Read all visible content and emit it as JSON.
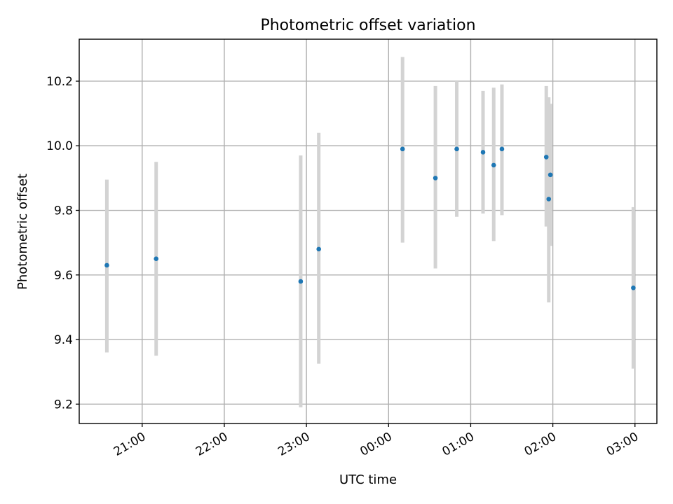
{
  "chart_data": {
    "type": "scatter",
    "title": "Photometric offset variation",
    "xlabel": "UTC time",
    "ylabel": "Photometric offset",
    "x_unit": "hours",
    "xlim": [
      20.2333,
      27.2667
    ],
    "ylim": [
      9.14,
      10.33
    ],
    "grid": true,
    "x_ticks": [
      {
        "value": 21,
        "label": "21:00"
      },
      {
        "value": 22,
        "label": "22:00"
      },
      {
        "value": 23,
        "label": "23:00"
      },
      {
        "value": 24,
        "label": "00:00"
      },
      {
        "value": 25,
        "label": "01:00"
      },
      {
        "value": 26,
        "label": "02:00"
      },
      {
        "value": 27,
        "label": "03:00"
      }
    ],
    "y_ticks": [
      {
        "value": 9.2,
        "label": "9.2"
      },
      {
        "value": 9.4,
        "label": "9.4"
      },
      {
        "value": 9.6,
        "label": "9.6"
      },
      {
        "value": 9.8,
        "label": "9.8"
      },
      {
        "value": 10.0,
        "label": "10.0"
      },
      {
        "value": 10.2,
        "label": "10.2"
      }
    ],
    "point_color": "#1f77b4",
    "errorbar_color": "#d3d3d3",
    "points": [
      {
        "x": 20.57,
        "y": 9.63,
        "low": 9.36,
        "high": 9.895
      },
      {
        "x": 21.17,
        "y": 9.65,
        "low": 9.35,
        "high": 9.95
      },
      {
        "x": 22.93,
        "y": 9.58,
        "low": 9.19,
        "high": 9.97
      },
      {
        "x": 23.15,
        "y": 9.68,
        "low": 9.325,
        "high": 10.04
      },
      {
        "x": 24.17,
        "y": 9.99,
        "low": 9.7,
        "high": 10.275
      },
      {
        "x": 24.57,
        "y": 9.9,
        "low": 9.62,
        "high": 10.185
      },
      {
        "x": 24.83,
        "y": 9.99,
        "low": 9.78,
        "high": 10.2
      },
      {
        "x": 25.15,
        "y": 9.98,
        "low": 9.79,
        "high": 10.17
      },
      {
        "x": 25.28,
        "y": 9.94,
        "low": 9.705,
        "high": 10.18
      },
      {
        "x": 25.38,
        "y": 9.99,
        "low": 9.785,
        "high": 10.19
      },
      {
        "x": 25.92,
        "y": 9.965,
        "low": 9.75,
        "high": 10.185
      },
      {
        "x": 25.95,
        "y": 9.835,
        "low": 9.515,
        "high": 10.15
      },
      {
        "x": 25.97,
        "y": 9.91,
        "low": 9.69,
        "high": 10.13
      },
      {
        "x": 26.98,
        "y": 9.56,
        "low": 9.31,
        "high": 9.81
      }
    ]
  }
}
